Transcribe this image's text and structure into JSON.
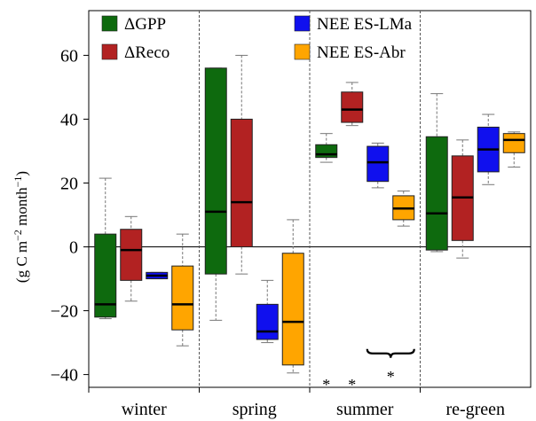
{
  "chart_data": {
    "type": "box",
    "ylabel_parts": {
      "prefix": "(g C m",
      "exp1": "−2",
      "mid": " month",
      "exp2": "−1",
      "suffix": ")"
    },
    "ylim": [
      -44,
      74
    ],
    "yticks": [
      -40,
      -20,
      0,
      20,
      40,
      60
    ],
    "grid": false,
    "legend_placement": "top",
    "categories": [
      "winter",
      "spring",
      "summer",
      "re-green"
    ],
    "series": [
      {
        "name": "ΔGPP",
        "color": "#0e6a0e"
      },
      {
        "name": "ΔReco",
        "color": "#b22222"
      },
      {
        "name": "NEE ES-LMa",
        "color": "#1010ee"
      },
      {
        "name": "NEE ES-Abr",
        "color": "#ffa500"
      }
    ],
    "boxes": [
      [
        {
          "whisker_low": -22.5,
          "q1": -22,
          "median": -18,
          "q3": 4,
          "whisker_high": 21.5
        },
        {
          "whisker_low": -17,
          "q1": -10.5,
          "median": -1,
          "q3": 5.5,
          "whisker_high": 9.5
        },
        {
          "whisker_low": -10,
          "q1": -10,
          "median": -9,
          "q3": -8,
          "whisker_high": -8
        },
        {
          "whisker_low": -31,
          "q1": -26,
          "median": -18,
          "q3": -6,
          "whisker_high": 4
        }
      ],
      [
        {
          "whisker_low": -23,
          "q1": -8.5,
          "median": 11,
          "q3": 56,
          "whisker_high": 56
        },
        {
          "whisker_low": -8.5,
          "q1": 0,
          "median": 14,
          "q3": 40,
          "whisker_high": 60
        },
        {
          "whisker_low": -30,
          "q1": -29,
          "median": -26.5,
          "q3": -18,
          "whisker_high": -10.5
        },
        {
          "whisker_low": -39.5,
          "q1": -37,
          "median": -23.5,
          "q3": -2,
          "whisker_high": 8.5
        }
      ],
      [
        {
          "whisker_low": 26.5,
          "q1": 28,
          "median": 29,
          "q3": 32,
          "whisker_high": 35.5
        },
        {
          "whisker_low": 38,
          "q1": 39,
          "median": 43,
          "q3": 48.5,
          "whisker_high": 51.5
        },
        {
          "whisker_low": 18.5,
          "q1": 20.5,
          "median": 26.5,
          "q3": 31.5,
          "whisker_high": 32.5
        },
        {
          "whisker_low": 6.5,
          "q1": 8.5,
          "median": 12,
          "q3": 16,
          "whisker_high": 17.5
        }
      ],
      [
        {
          "whisker_low": -1.5,
          "q1": -1,
          "median": 10.5,
          "q3": 34.5,
          "whisker_high": 48
        },
        {
          "whisker_low": -3.5,
          "q1": 2,
          "median": 15.5,
          "q3": 28.5,
          "whisker_high": 33.5
        },
        {
          "whisker_low": 19.5,
          "q1": 23.5,
          "median": 30.5,
          "q3": 37.5,
          "whisker_high": 41.5
        },
        {
          "whisker_low": 25,
          "q1": 29.5,
          "median": 33.5,
          "q3": 35.5,
          "whisker_high": 36
        }
      ]
    ],
    "annotations": [
      {
        "text": "*",
        "category": "summer",
        "series": 0,
        "y": -42
      },
      {
        "text": "*",
        "category": "summer",
        "series": 1,
        "y": -42
      },
      {
        "text": "*",
        "category": "summer",
        "series": 2.5,
        "y": -39.5
      }
    ],
    "bracket": {
      "category": "summer",
      "from_series": 2,
      "to_series": 3,
      "y": -32
    }
  }
}
